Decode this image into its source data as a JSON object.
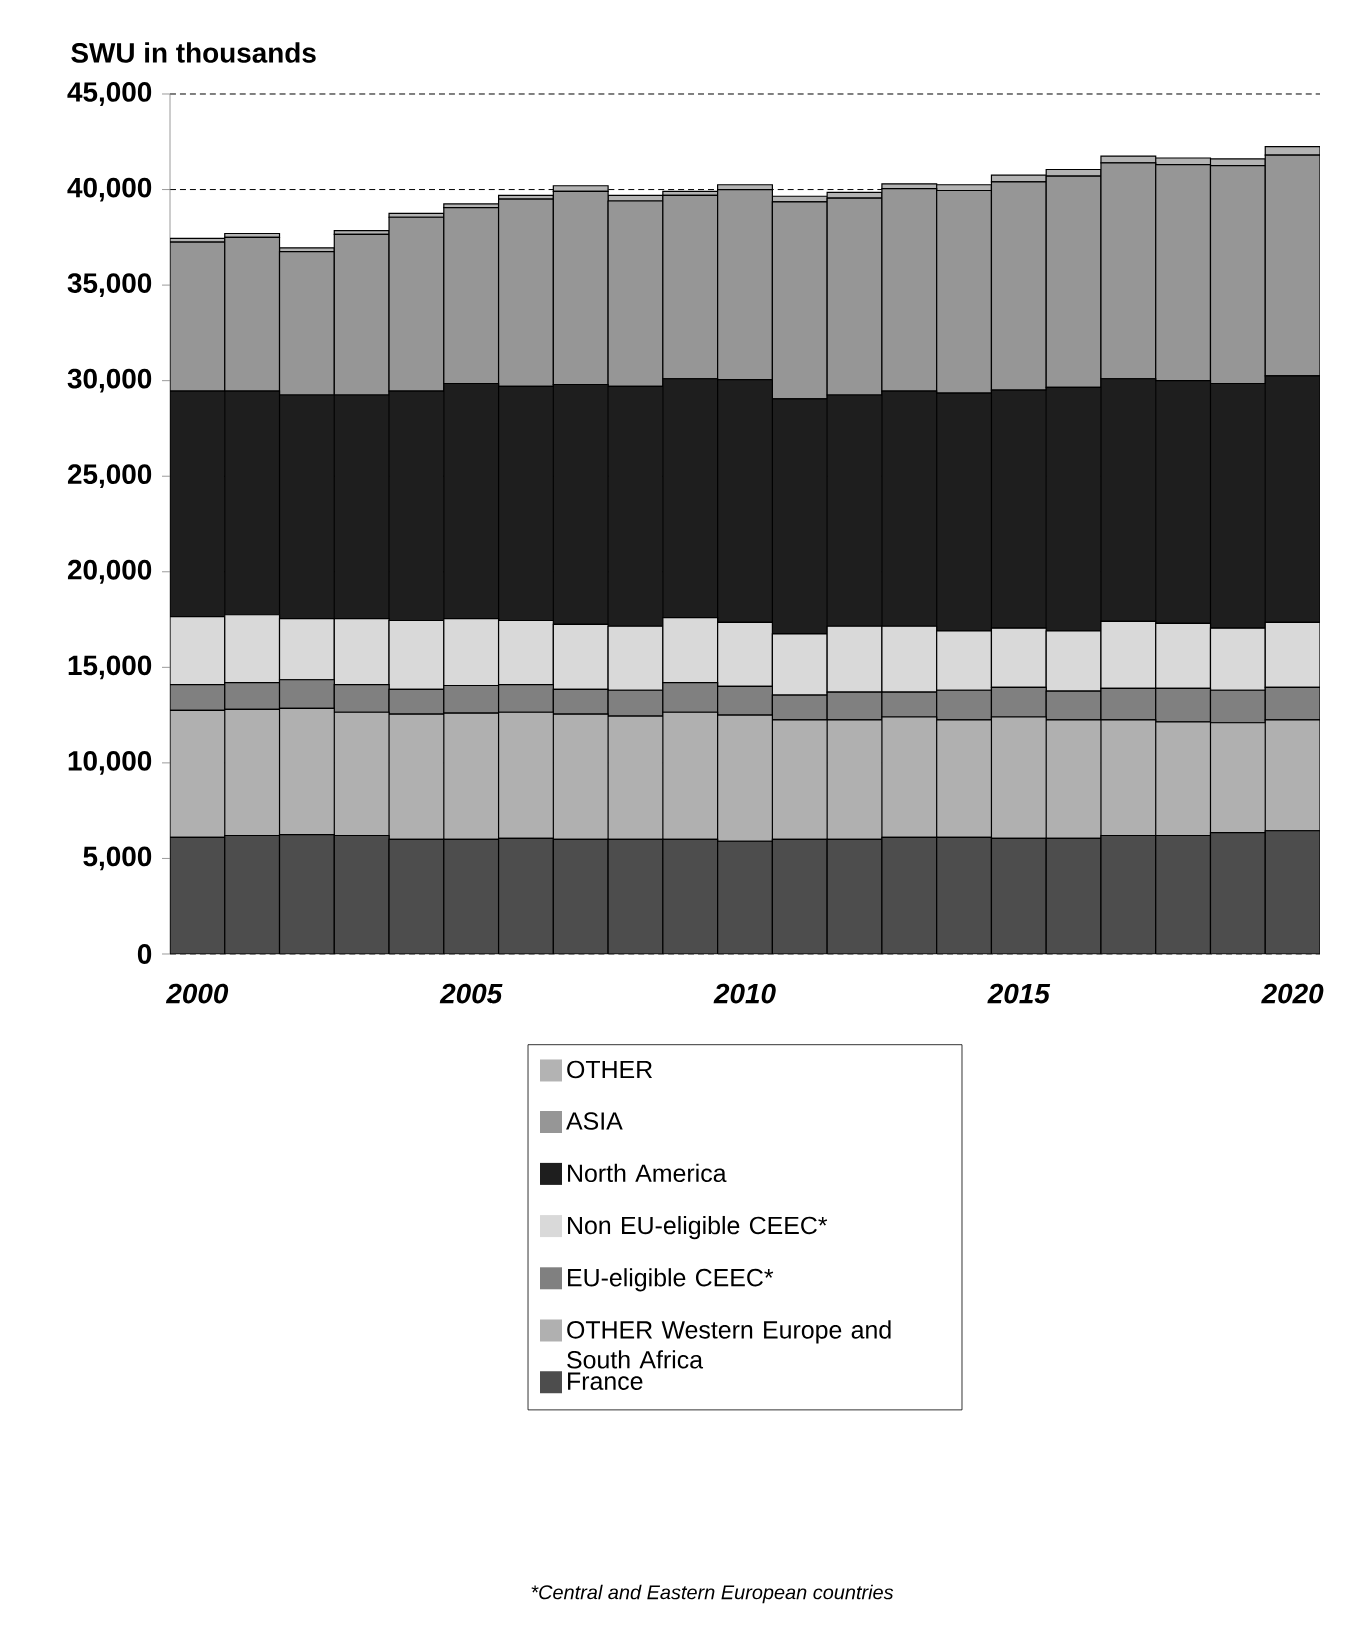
{
  "chart_data": {
    "type": "bar",
    "stacked": true,
    "ylabel": "SWU in thousands",
    "categories": [
      "2000",
      null,
      null,
      null,
      null,
      "2005",
      null,
      null,
      null,
      null,
      "2010",
      null,
      null,
      null,
      null,
      "2015",
      null,
      null,
      null,
      null,
      "2020"
    ],
    "series": [
      {
        "name": "France",
        "color": "#4d4d4d",
        "values": [
          6100,
          6200,
          6250,
          6200,
          6000,
          6000,
          6050,
          6000,
          6000,
          6000,
          5900,
          6000,
          6000,
          6100,
          6100,
          6050,
          6050,
          6200,
          6200,
          6350,
          6450
        ]
      },
      {
        "name": "OTHER Western Europe and South Africa",
        "color": "#b0b0b0",
        "values": [
          6650,
          6600,
          6600,
          6450,
          6550,
          6600,
          6600,
          6550,
          6450,
          6650,
          6600,
          6250,
          6250,
          6300,
          6150,
          6350,
          6200,
          6050,
          5950,
          5750,
          5800
        ]
      },
      {
        "name": "EU-eligible CEEC*",
        "color": "#808080",
        "values": [
          1350,
          1400,
          1500,
          1450,
          1300,
          1450,
          1450,
          1300,
          1350,
          1550,
          1500,
          1300,
          1450,
          1300,
          1550,
          1550,
          1500,
          1650,
          1750,
          1700,
          1700
        ]
      },
      {
        "name": "Non EU-eligible CEEC*",
        "color": "#d9d9d9",
        "values": [
          3550,
          3550,
          3200,
          3450,
          3600,
          3500,
          3350,
          3400,
          3350,
          3400,
          3350,
          3200,
          3450,
          3450,
          3100,
          3100,
          3150,
          3500,
          3400,
          3250,
          3400
        ]
      },
      {
        "name": "North America",
        "color": "#1e1e1e",
        "values": [
          11800,
          11700,
          11700,
          11700,
          12000,
          12300,
          12250,
          12550,
          12550,
          12500,
          12700,
          12300,
          12100,
          12300,
          12450,
          12450,
          12750,
          12700,
          12700,
          12800,
          12900
        ]
      },
      {
        "name": "ASIA",
        "color": "#969696",
        "values": [
          7800,
          8050,
          7500,
          8400,
          9100,
          9200,
          9800,
          10100,
          9700,
          9600,
          9950,
          10300,
          10300,
          10600,
          10600,
          10900,
          11050,
          11300,
          11300,
          11400,
          11550
        ]
      },
      {
        "name": "OTHER",
        "color": "#b3b3b3",
        "values": [
          200,
          200,
          200,
          200,
          200,
          200,
          200,
          300,
          300,
          200,
          250,
          300,
          300,
          250,
          300,
          350,
          350,
          350,
          350,
          350,
          450
        ]
      }
    ],
    "ylim": [
      0,
      45000
    ],
    "yticks": [
      {
        "value": 0,
        "label": "0"
      },
      {
        "value": 5000,
        "label": "5,000"
      },
      {
        "value": 10000,
        "label": "10,000"
      },
      {
        "value": 15000,
        "label": "15,000"
      },
      {
        "value": 20000,
        "label": "20,000"
      },
      {
        "value": 25000,
        "label": "25,000"
      },
      {
        "value": 30000,
        "label": "30,000"
      },
      {
        "value": 35000,
        "label": "35,000"
      },
      {
        "value": 40000,
        "label": "40,000"
      },
      {
        "value": 45000,
        "label": "45,000"
      }
    ],
    "grid": "y",
    "legend": "bottom",
    "annotations": [
      "*Central and Eastern European countries"
    ]
  }
}
